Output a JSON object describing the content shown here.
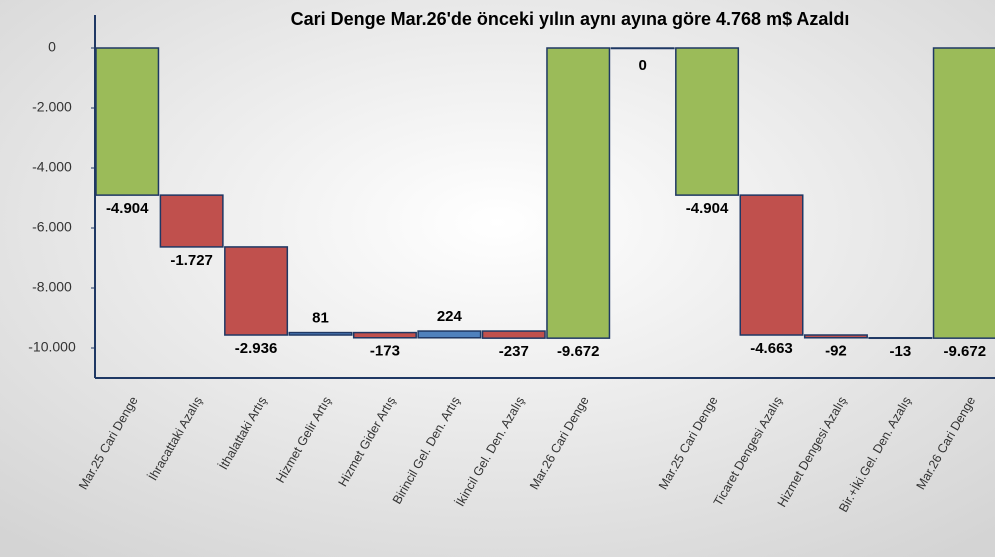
{
  "chart_data": {
    "type": "waterfall",
    "title": "Cari Denge Mar.26'de önceki yılın aynı ayına göre  4.768 m$ Azaldı",
    "categories": [
      "Mar.25 Cari Denge",
      "İhracattaki Azalış",
      "İthalattaki Artış",
      "Hizmet Gelir Artış",
      "Hizmet Gider Artış",
      "Birincil Gel. Den. Artış",
      "İkincil Gel. Den. Azalış",
      "Mar.26 Cari Denge",
      null,
      "Mar.25 Cari Denge",
      "Ticaret Dengesi Azalış",
      "Hizmet Dengesi Azalış",
      "Bir.+İki.Gel. Den. Azalış",
      "Mar.26 Cari Denge"
    ],
    "values": [
      -4904,
      -1727,
      -2936,
      81,
      -173,
      224,
      -237,
      -9672,
      0,
      -4904,
      -4663,
      -92,
      -13,
      -9672
    ],
    "value_labels": [
      "-4.904",
      "-1.727",
      "-2.936",
      "81",
      "-173",
      "224",
      "-237",
      "-9.672",
      "0",
      "-4.904",
      "-4.663",
      "-92",
      "-13",
      "-9.672"
    ],
    "is_total": [
      true,
      false,
      false,
      false,
      false,
      false,
      false,
      true,
      true,
      true,
      false,
      false,
      false,
      true
    ],
    "total_color": "#9bbb59",
    "increase_color": "#4f81bd",
    "decrease_color": "#c0504d",
    "ylim": [
      -11000,
      1100
    ],
    "yticks": [
      0,
      {
        "value": -2000,
        "label": "-2.000"
      },
      {
        "value": -4000,
        "label": "-4.000"
      },
      {
        "value": -6000,
        "label": "-6.000"
      },
      {
        "value": -8000,
        "label": "-8.000"
      },
      {
        "value": -10000,
        "label": "-10.000"
      }
    ]
  }
}
